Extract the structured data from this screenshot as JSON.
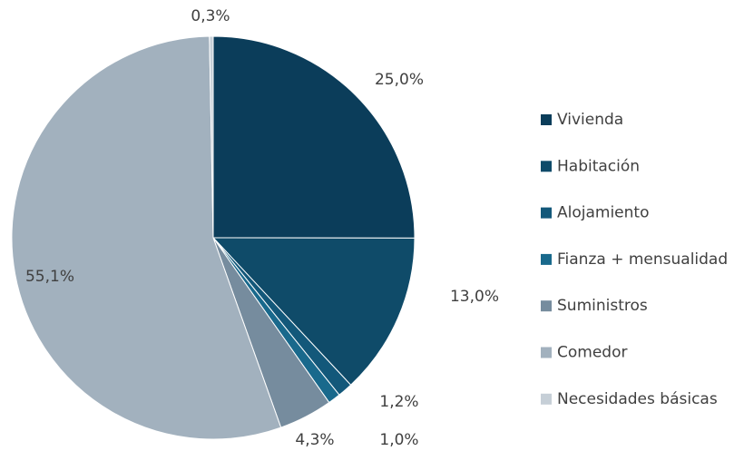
{
  "chart_data": {
    "type": "pie",
    "categories": [
      "Vivienda",
      "Habitación",
      "Alojamiento",
      "Fianza + mensualidad",
      "Suministros",
      "Comedor",
      "Necesidades básicas"
    ],
    "values": [
      25.0,
      13.0,
      1.2,
      1.0,
      4.3,
      55.1,
      0.3
    ],
    "value_labels": [
      "25,0%",
      "13,0%",
      "1,2%",
      "1,0%",
      "4,3%",
      "55,1%",
      "0,3%"
    ],
    "colors": [
      "#0b3d5a",
      "#0f4b69",
      "#13587a",
      "#19698c",
      "#768c9e",
      "#a2b1be",
      "#c6cfd7"
    ],
    "legend": "right"
  }
}
